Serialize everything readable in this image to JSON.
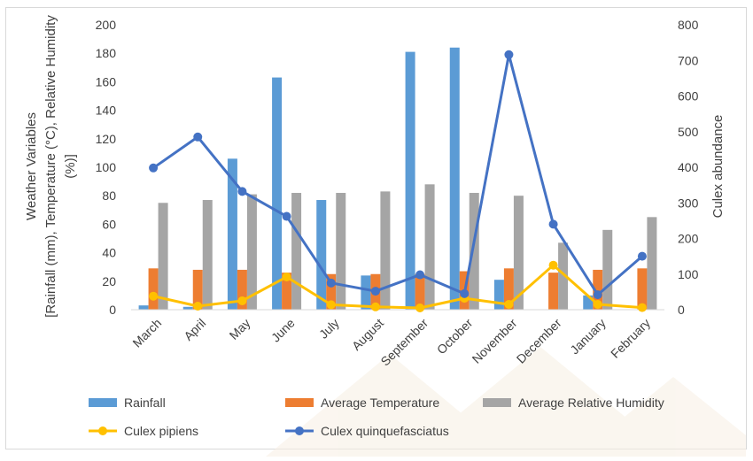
{
  "chart_data": {
    "type": "bar",
    "categories": [
      "March",
      "April",
      "May",
      "June",
      "July",
      "August",
      "September",
      "October",
      "November",
      "December",
      "January",
      "February"
    ],
    "bar_series": [
      {
        "name": "Rainfall",
        "color": "#5B9BD5",
        "values": [
          3,
          2,
          106,
          163,
          77,
          24,
          181,
          184,
          21,
          0,
          10,
          0
        ]
      },
      {
        "name": "Average Temperature",
        "color": "#ED7D31",
        "values": [
          29,
          28,
          28,
          26,
          25,
          25,
          25,
          27,
          29,
          26,
          28,
          29
        ]
      },
      {
        "name": "Average Relative Humidity",
        "color": "#A5A5A5",
        "values": [
          75,
          77,
          81,
          82,
          82,
          83,
          88,
          82,
          80,
          47,
          56,
          65
        ]
      }
    ],
    "line_series": [
      {
        "name": "Culex pipiens",
        "color": "#FFC000",
        "axis": "right",
        "values": [
          38,
          10,
          25,
          92,
          14,
          8,
          5,
          32,
          15,
          125,
          15,
          6
        ]
      },
      {
        "name": "Culex quinquefasciatus",
        "color": "#4472C4",
        "axis": "right",
        "values": [
          398,
          485,
          332,
          262,
          75,
          52,
          98,
          45,
          716,
          240,
          42,
          150
        ]
      }
    ],
    "left_axis": {
      "label_line1": "Weather Variables",
      "label_line2": "[Rainfall (mm), Temperature (°C), Relative Humidity",
      "label_line3": "(%)]",
      "min": 0,
      "max": 200,
      "step": 20
    },
    "right_axis": {
      "label": "Culex abundance",
      "min": 0,
      "max": 800,
      "step": 100
    },
    "legend_position": "bottom",
    "grid": false
  }
}
